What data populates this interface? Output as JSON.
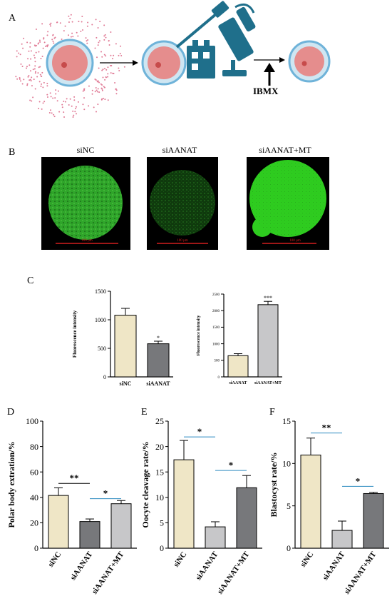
{
  "panel_a": {
    "letter": "A",
    "label_ibmx": "IBMX"
  },
  "panel_b": {
    "letter": "B",
    "images": [
      {
        "title": "siNC",
        "scale_label": "100 µm",
        "color": "#39b82e"
      },
      {
        "title": "siAANAT",
        "scale_label": "100 µm",
        "color": "#1f6b1a"
      },
      {
        "title": "siAANAT+MT",
        "scale_label": "100 µm",
        "color": "#33cc20"
      }
    ]
  },
  "panel_c": {
    "letter": "C"
  },
  "panel_d": {
    "letter": "D"
  },
  "panel_e": {
    "letter": "E"
  },
  "panel_f": {
    "letter": "F"
  },
  "colors": {
    "bar_cream": "#efe6c6",
    "bar_gray_dark": "#77787b",
    "bar_gray_light": "#c7c7c9",
    "sig_line": "#2e8bc0"
  },
  "chart_data": [
    {
      "id": "c1",
      "type": "bar",
      "categories": [
        "siNC",
        "siAANAT"
      ],
      "values": [
        1080,
        580
      ],
      "errors": [
        120,
        45
      ],
      "ylabel": "Fluorescence intensity",
      "ylim": [
        0,
        1500
      ],
      "yticks": [
        0,
        500,
        1000,
        1500
      ],
      "annotations": [
        {
          "bar": 1,
          "text": "*"
        }
      ]
    },
    {
      "id": "c2",
      "type": "bar",
      "categories": [
        "siAANAT",
        "siAANAT+MT"
      ],
      "values": [
        640,
        2180
      ],
      "errors": [
        60,
        100
      ],
      "ylabel": "Fluorescence intensity",
      "ylim": [
        0,
        2500
      ],
      "yticks": [
        0,
        500,
        1000,
        1500,
        2000,
        2500
      ],
      "annotations": [
        {
          "bar": 1,
          "text": "***"
        }
      ]
    },
    {
      "id": "d",
      "type": "bar",
      "categories": [
        "siNC",
        "siAANAT",
        "siAANAT+MT"
      ],
      "values": [
        41.5,
        21,
        35
      ],
      "errors": [
        6,
        2,
        2.5
      ],
      "ylabel": "Polar body extration/%",
      "ylim": [
        0,
        100
      ],
      "yticks": [
        0,
        20,
        40,
        60,
        80,
        100
      ],
      "comparisons": [
        {
          "from": 0,
          "to": 1,
          "y": 51,
          "text": "**",
          "color": "#000000"
        },
        {
          "from": 1,
          "to": 2,
          "y": 39,
          "text": "*",
          "color": "#2e8bc0"
        }
      ]
    },
    {
      "id": "e",
      "type": "bar",
      "categories": [
        "siNC",
        "siAANAT",
        "siAANAT+MT"
      ],
      "values": [
        17.4,
        4.2,
        11.9
      ],
      "errors": [
        3.8,
        1.0,
        2.4
      ],
      "ylabel": "Oocyte cleavage rate/%",
      "ylim": [
        0,
        25
      ],
      "yticks": [
        0,
        5,
        10,
        15,
        20,
        25
      ],
      "comparisons": [
        {
          "from": 0,
          "to": 1,
          "y": 21.9,
          "text": "*",
          "color": "#2e8bc0"
        },
        {
          "from": 1,
          "to": 2,
          "y": 15.3,
          "text": "*",
          "color": "#2e8bc0"
        }
      ]
    },
    {
      "id": "f",
      "type": "bar",
      "categories": [
        "siNC",
        "siAANAT",
        "siAANAT+MT"
      ],
      "values": [
        11,
        2.1,
        6.45
      ],
      "errors": [
        2.0,
        1.1,
        0.15
      ],
      "ylabel": "Blastocyst rate/%",
      "ylim": [
        0,
        15
      ],
      "yticks": [
        0,
        5,
        10,
        15
      ],
      "comparisons": [
        {
          "from": 0,
          "to": 1,
          "y": 13.6,
          "text": "**",
          "color": "#2e8bc0"
        },
        {
          "from": 1,
          "to": 2,
          "y": 7.3,
          "text": "*",
          "color": "#2e8bc0"
        }
      ]
    }
  ]
}
